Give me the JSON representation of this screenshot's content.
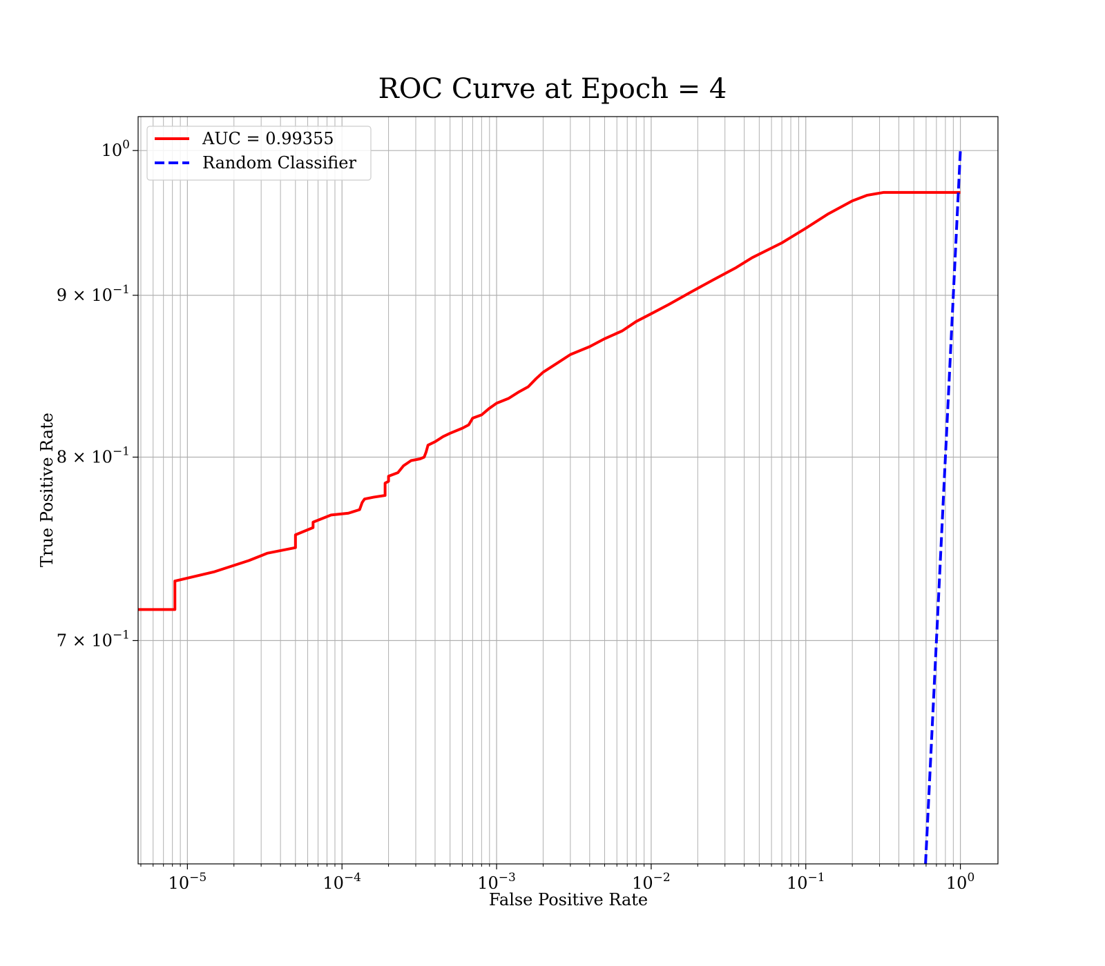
{
  "chart_data": {
    "type": "line",
    "title": "ROC Curve at Epoch = 4",
    "xlabel": "False Positive Rate",
    "ylabel": "True Positive Rate",
    "xscale": "log",
    "yscale": "log",
    "xlim": [
      4.8e-06,
      1.75
    ],
    "ylim": [
      0.595,
      1.025
    ],
    "grid": "major and minor",
    "legend_position": "top-left",
    "x_ticks": [
      {
        "value": 1e-05,
        "base": "10",
        "exp": "−5"
      },
      {
        "value": 0.0001,
        "base": "10",
        "exp": "−4"
      },
      {
        "value": 0.001,
        "base": "10",
        "exp": "−3"
      },
      {
        "value": 0.01,
        "base": "10",
        "exp": "−2"
      },
      {
        "value": 0.1,
        "base": "10",
        "exp": "−1"
      },
      {
        "value": 1,
        "base": "10",
        "exp": "0"
      }
    ],
    "y_ticks": [
      {
        "value": 0.7,
        "base": "7 × 10",
        "exp": "−1"
      },
      {
        "value": 0.8,
        "base": "8 × 10",
        "exp": "−1"
      },
      {
        "value": 0.9,
        "base": "9 × 10",
        "exp": "−1"
      },
      {
        "value": 1.0,
        "base": "10",
        "exp": "0"
      }
    ],
    "series": [
      {
        "name": "AUC = 0.99355",
        "color": "#ff0000",
        "style": "solid",
        "points": [
          [
            4.8e-06,
            0.716
          ],
          [
            8.3e-06,
            0.716
          ],
          [
            8.3e-06,
            0.731
          ],
          [
            1.5e-05,
            0.736
          ],
          [
            2.5e-05,
            0.742
          ],
          [
            3.3e-05,
            0.746
          ],
          [
            5e-05,
            0.749
          ],
          [
            5e-05,
            0.756
          ],
          [
            6.5e-05,
            0.76
          ],
          [
            6.5e-05,
            0.763
          ],
          [
            8.5e-05,
            0.767
          ],
          [
            0.00011,
            0.768
          ],
          [
            0.00013,
            0.77
          ],
          [
            0.000135,
            0.774
          ],
          [
            0.00014,
            0.776
          ],
          [
            0.00016,
            0.777
          ],
          [
            0.00019,
            0.778
          ],
          [
            0.00019,
            0.785
          ],
          [
            0.0002,
            0.786
          ],
          [
            0.0002,
            0.789
          ],
          [
            0.00023,
            0.791
          ],
          [
            0.00025,
            0.795
          ],
          [
            0.00028,
            0.798
          ],
          [
            0.00032,
            0.799
          ],
          [
            0.00034,
            0.8
          ],
          [
            0.00035,
            0.803
          ],
          [
            0.00036,
            0.807
          ],
          [
            0.0004,
            0.809
          ],
          [
            0.00045,
            0.812
          ],
          [
            0.0005,
            0.814
          ],
          [
            0.0006,
            0.817
          ],
          [
            0.00066,
            0.819
          ],
          [
            0.0007,
            0.823
          ],
          [
            0.0008,
            0.825
          ],
          [
            0.0009,
            0.829
          ],
          [
            0.001,
            0.832
          ],
          [
            0.0012,
            0.835
          ],
          [
            0.0014,
            0.839
          ],
          [
            0.0016,
            0.842
          ],
          [
            0.0018,
            0.847
          ],
          [
            0.002,
            0.851
          ],
          [
            0.0025,
            0.857
          ],
          [
            0.003,
            0.862
          ],
          [
            0.004,
            0.867
          ],
          [
            0.005,
            0.872
          ],
          [
            0.0065,
            0.877
          ],
          [
            0.008,
            0.883
          ],
          [
            0.01,
            0.888
          ],
          [
            0.013,
            0.894
          ],
          [
            0.018,
            0.902
          ],
          [
            0.025,
            0.91
          ],
          [
            0.035,
            0.918
          ],
          [
            0.045,
            0.925
          ],
          [
            0.07,
            0.935
          ],
          [
            0.1,
            0.945
          ],
          [
            0.14,
            0.955
          ],
          [
            0.2,
            0.964
          ],
          [
            0.25,
            0.968
          ],
          [
            0.32,
            0.97
          ],
          [
            1.0,
            0.97
          ]
        ]
      },
      {
        "name": "Random Classifier",
        "color": "#0000ff",
        "style": "dashed",
        "points": [
          [
            0.595,
            0.595
          ],
          [
            0.65,
            0.65
          ],
          [
            0.7,
            0.7
          ],
          [
            0.75,
            0.75
          ],
          [
            0.8,
            0.8
          ],
          [
            0.85,
            0.85
          ],
          [
            0.9,
            0.9
          ],
          [
            0.95,
            0.95
          ],
          [
            1.0,
            1.0
          ]
        ]
      }
    ]
  }
}
